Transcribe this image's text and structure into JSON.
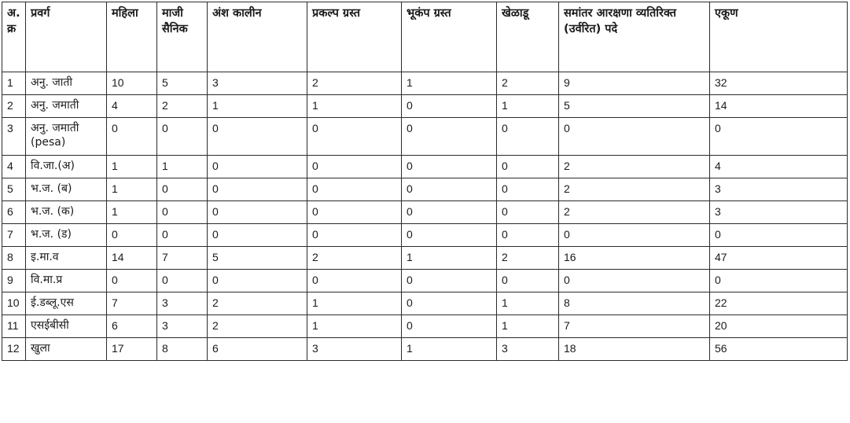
{
  "table": {
    "headers": {
      "sr": "अ. क्र",
      "category": "प्रवर्ग",
      "women": "महिला",
      "ex_servicemen": "माजी सैनिक",
      "part_time": "अंश कालीन",
      "project_affected": "प्रकल्प ग्रस्त",
      "earthquake_affected": "भूकंप ग्रस्त",
      "sports": "खेळाडू",
      "parallel_excess": "समांतर आरक्षणा व्यतिरिक्त (उर्वरित) पदे",
      "total": "एकूण"
    },
    "rows": [
      {
        "sr": "1",
        "category": "अनु. जाती",
        "women": "10",
        "ex_servicemen": "5",
        "part_time": "3",
        "project_affected": "2",
        "earthquake_affected": "1",
        "sports": "2",
        "parallel_excess": "9",
        "total": "32"
      },
      {
        "sr": "2",
        "category": "अनु. जमाती",
        "women": "4",
        "ex_servicemen": "2",
        "part_time": "1",
        "project_affected": "1",
        "earthquake_affected": "0",
        "sports": "1",
        "parallel_excess": "5",
        "total": "14"
      },
      {
        "sr": "3",
        "category": "अनु. जमाती (pesa)",
        "women": "0",
        "ex_servicemen": "0",
        "part_time": "0",
        "project_affected": "0",
        "earthquake_affected": "0",
        "sports": "0",
        "parallel_excess": "0",
        "total": "0"
      },
      {
        "sr": "4",
        "category": "वि.जा.(अ)",
        "women": "1",
        "ex_servicemen": "1",
        "part_time": "0",
        "project_affected": "0",
        "earthquake_affected": "0",
        "sports": "0",
        "parallel_excess": "2",
        "total": "4"
      },
      {
        "sr": "5",
        "category": "भ.ज. (ब)",
        "women": "1",
        "ex_servicemen": "0",
        "part_time": "0",
        "project_affected": "0",
        "earthquake_affected": "0",
        "sports": "0",
        "parallel_excess": "2",
        "total": "3"
      },
      {
        "sr": "6",
        "category": "भ.ज. (क)",
        "women": "1",
        "ex_servicemen": "0",
        "part_time": "0",
        "project_affected": "0",
        "earthquake_affected": "0",
        "sports": "0",
        "parallel_excess": "2",
        "total": "3"
      },
      {
        "sr": "7",
        "category": "भ.ज. (ड)",
        "women": "0",
        "ex_servicemen": "0",
        "part_time": "0",
        "project_affected": "0",
        "earthquake_affected": "0",
        "sports": "0",
        "parallel_excess": "0",
        "total": "0"
      },
      {
        "sr": "8",
        "category": "इ.मा.व",
        "women": "14",
        "ex_servicemen": "7",
        "part_time": "5",
        "project_affected": "2",
        "earthquake_affected": "1",
        "sports": "2",
        "parallel_excess": "16",
        "total": "47"
      },
      {
        "sr": "9",
        "category": "वि.मा.प्र",
        "women": "0",
        "ex_servicemen": "0",
        "part_time": "0",
        "project_affected": "0",
        "earthquake_affected": "0",
        "sports": "0",
        "parallel_excess": "0",
        "total": "0"
      },
      {
        "sr": "10",
        "category": "ई.डब्लू.एस",
        "women": "7",
        "ex_servicemen": "3",
        "part_time": "2",
        "project_affected": "1",
        "earthquake_affected": "0",
        "sports": "1",
        "parallel_excess": "8",
        "total": "22"
      },
      {
        "sr": "11",
        "category": "एसईबीसी",
        "women": "6",
        "ex_servicemen": "3",
        "part_time": "2",
        "project_affected": "1",
        "earthquake_affected": "0",
        "sports": "1",
        "parallel_excess": "7",
        "total": "20"
      },
      {
        "sr": "12",
        "category": "खुला",
        "women": "17",
        "ex_servicemen": "8",
        "part_time": "6",
        "project_affected": "3",
        "earthquake_affected": "1",
        "sports": "3",
        "parallel_excess": "18",
        "total": "56"
      }
    ]
  }
}
